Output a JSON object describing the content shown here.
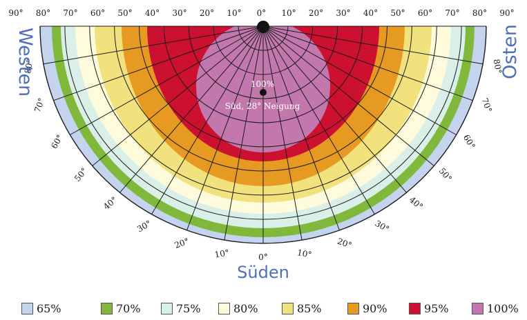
{
  "diagram": {
    "top_scale": [
      "90°",
      "80°",
      "70°",
      "60°",
      "50°",
      "40°",
      "30°",
      "20°",
      "10°",
      "0°",
      "10°",
      "20°",
      "30°",
      "40°",
      "50°",
      "60°",
      "70°",
      "80°",
      "90°"
    ],
    "left_scale": [
      "80°",
      "70°",
      "60°",
      "50°",
      "40°",
      "30°",
      "20°",
      "10°"
    ],
    "bottom_scale": "0°",
    "right_scale": [
      "10°",
      "20°",
      "30°",
      "40°",
      "50°",
      "60°",
      "70°",
      "80°"
    ],
    "directions": {
      "west": "Westen",
      "east": "Osten",
      "south": "Süden"
    },
    "optimum": {
      "value": "100%",
      "label": "Süd, 28° Neigung"
    },
    "zones": [
      {
        "label": "65%",
        "color": "#c4d3ee"
      },
      {
        "label": "70%",
        "color": "#80b83c"
      },
      {
        "label": "75%",
        "color": "#dbefe9"
      },
      {
        "label": "80%",
        "color": "#fefbdc"
      },
      {
        "label": "85%",
        "color": "#f2e27e"
      },
      {
        "label": "90%",
        "color": "#e69a22"
      },
      {
        "label": "95%",
        "color": "#cc1030"
      },
      {
        "label": "100%",
        "color": "#c278ac"
      }
    ]
  }
}
